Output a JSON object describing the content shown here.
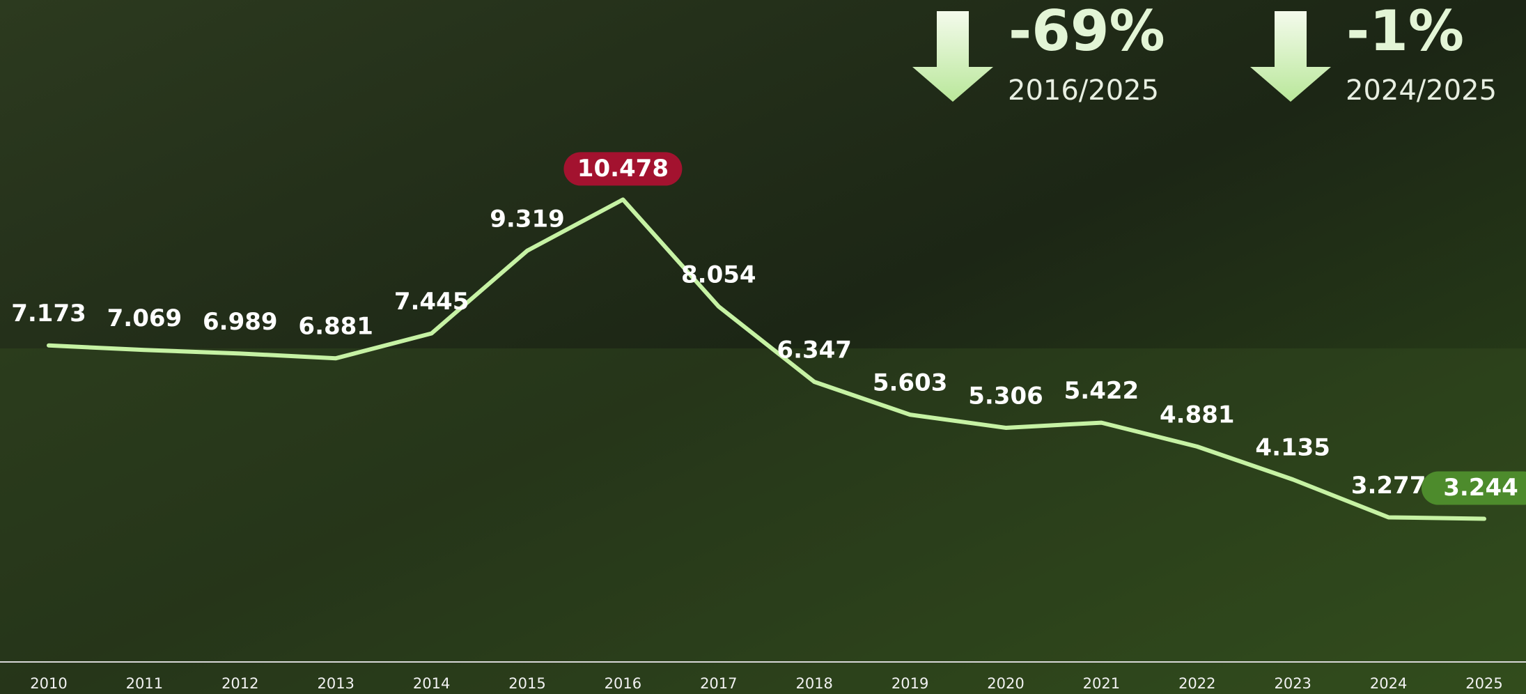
{
  "chart_data": {
    "type": "line",
    "categories": [
      "2010",
      "2011",
      "2012",
      "2013",
      "2014",
      "2015",
      "2016",
      "2017",
      "2018",
      "2019",
      "2020",
      "2021",
      "2022",
      "2023",
      "2024",
      "2025"
    ],
    "series": [
      {
        "name": "",
        "color": "#c6f2a4",
        "values": [
          7.173,
          7.069,
          6.989,
          6.881,
          7.445,
          9.319,
          10.478,
          8.054,
          6.347,
          5.603,
          5.306,
          5.422,
          4.881,
          4.135,
          3.277,
          3.244
        ]
      }
    ],
    "ylim": [
      0,
      15
    ],
    "max_label_color": "#a3122f",
    "last_label_color": "#4d8b2c",
    "annotations": [
      {
        "value": "-69%",
        "period": "2016/2025"
      },
      {
        "value": "-1%",
        "period": "2024/2025"
      }
    ]
  }
}
